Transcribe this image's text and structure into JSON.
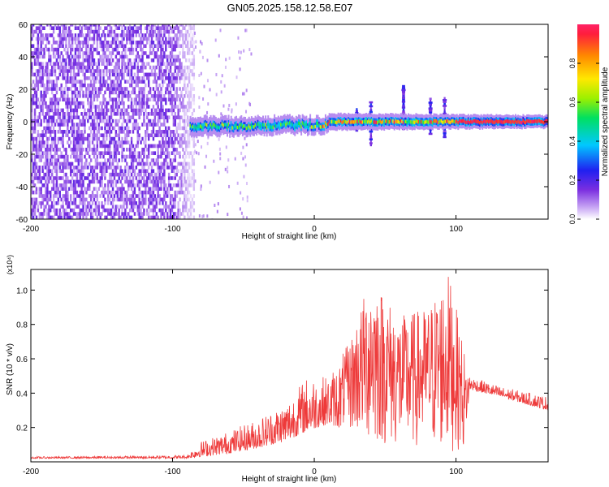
{
  "title": "GN05.2025.158.12.58.E07",
  "colors": {
    "snr_line": "#ee3a3a",
    "purple": "#7b2fe0",
    "ridge_red": "#ff2b4a"
  },
  "chart_data": [
    {
      "type": "heatmap",
      "title": "GN05.2025.158.12.58.E07",
      "xlabel": "Height of straight line (km)",
      "ylabel": "Frequency (Hz)",
      "xlim": [
        -200,
        165
      ],
      "ylim": [
        -60,
        60
      ],
      "xticks": [
        -200,
        -100,
        0,
        100
      ],
      "yticks": [
        -60,
        -40,
        -20,
        0,
        20,
        40,
        60
      ],
      "xtick_labels": [
        "-200",
        "-100",
        "0",
        "100"
      ],
      "ytick_labels": [
        "-60",
        "-40",
        "-20",
        "0",
        "20",
        "40",
        "60"
      ],
      "colorbar": {
        "label": "Normalized spectral amplitude",
        "range": [
          0,
          1
        ],
        "ticks": [
          "0.0",
          "0.2",
          "0.4",
          "0.6",
          "0.8"
        ],
        "colormap": "rainbow (violet → blue → cyan → green → yellow → red)"
      },
      "features": {
        "noise_region_x": [
          -200,
          -85
        ],
        "ridge_start_x": -88,
        "ridge_frequency_hz": 0,
        "ridge_high_amplitude_from_x": 100,
        "bursts": [
          {
            "x": 30,
            "freq_top": 8,
            "freq_bottom": -6
          },
          {
            "x": 40,
            "freq_top": 12,
            "freq_bottom": -15
          },
          {
            "x": 63,
            "freq_top": 22,
            "freq_bottom": -5
          },
          {
            "x": 82,
            "freq_top": 14,
            "freq_bottom": -8
          },
          {
            "x": 92,
            "freq_top": 14,
            "freq_bottom": -10
          }
        ]
      }
    },
    {
      "type": "line",
      "xlabel": "Height of straight line (km)",
      "ylabel": "SNR (10 * v/v)",
      "yscale_label": "(x10⁴)",
      "xlim": [
        -200,
        165
      ],
      "ylim": [
        0,
        1.12
      ],
      "xticks": [
        -200,
        -100,
        0,
        100
      ],
      "yticks": [
        0.2,
        0.4,
        0.6,
        0.8,
        1.0
      ],
      "xtick_labels": [
        "-200",
        "-100",
        "0",
        "100"
      ],
      "ytick_labels": [
        "0.2",
        "0.4",
        "0.6",
        "0.8",
        "1.0"
      ],
      "series": [
        {
          "envelope": [
            {
              "x": -200,
              "low": 0.02,
              "high": 0.03
            },
            {
              "x": -120,
              "low": 0.02,
              "high": 0.035
            },
            {
              "x": -90,
              "low": 0.02,
              "high": 0.04
            },
            {
              "x": -80,
              "low": 0.03,
              "high": 0.12
            },
            {
              "x": -60,
              "low": 0.05,
              "high": 0.18
            },
            {
              "x": -40,
              "low": 0.08,
              "high": 0.25
            },
            {
              "x": -20,
              "low": 0.12,
              "high": 0.35
            },
            {
              "x": -5,
              "low": 0.18,
              "high": 0.5
            },
            {
              "x": 10,
              "low": 0.22,
              "high": 0.5
            },
            {
              "x": 25,
              "low": 0.18,
              "high": 0.7
            },
            {
              "x": 40,
              "low": 0.1,
              "high": 1.1
            },
            {
              "x": 60,
              "low": 0.08,
              "high": 0.85
            },
            {
              "x": 80,
              "low": 0.08,
              "high": 0.9
            },
            {
              "x": 95,
              "low": 0.05,
              "high": 1.1
            },
            {
              "x": 105,
              "low": 0.08,
              "high": 0.7
            },
            {
              "x": 110,
              "low": 0.42,
              "high": 0.5
            },
            {
              "x": 130,
              "low": 0.38,
              "high": 0.44
            },
            {
              "x": 165,
              "low": 0.3,
              "high": 0.38
            }
          ]
        }
      ]
    }
  ]
}
